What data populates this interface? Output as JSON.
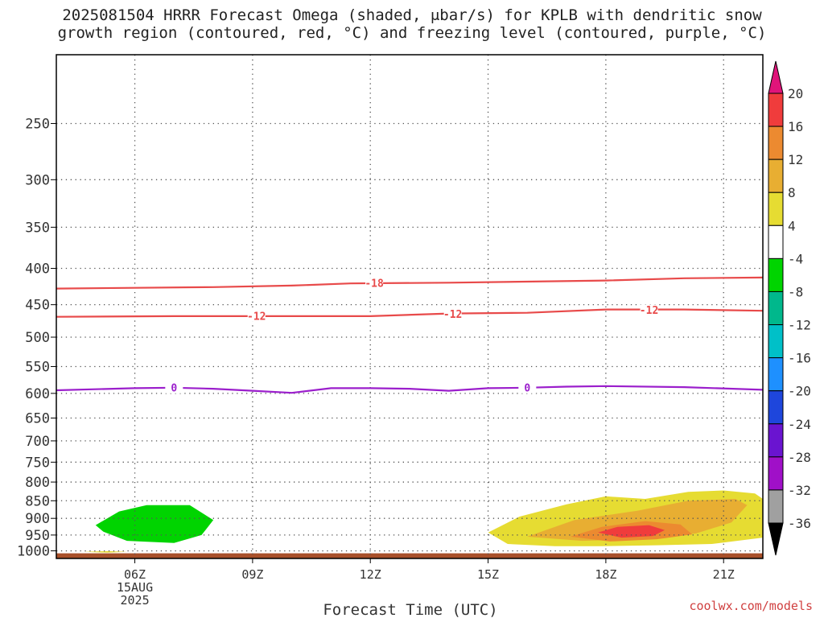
{
  "title": {
    "line1": "2025081504 HRRR Forecast Omega (shaded, μbar/s) for KPLB with dendritic snow",
    "line2": "growth region (contoured, red, °C) and freezing level (contoured, purple, °C)"
  },
  "credit": "coolwx.com/models",
  "chart_data": {
    "type": "time-height cross section",
    "xlabel": "Forecast Time (UTC)",
    "x_ticks": [
      {
        "hour": 6,
        "label": "06Z",
        "sub": [
          "15AUG",
          "2025"
        ]
      },
      {
        "hour": 9,
        "label": "09Z"
      },
      {
        "hour": 12,
        "label": "12Z"
      },
      {
        "hour": 15,
        "label": "15Z"
      },
      {
        "hour": 18,
        "label": "18Z"
      },
      {
        "hour": 21,
        "label": "21Z"
      }
    ],
    "xlim": [
      4,
      22
    ],
    "y_ticks": [
      250,
      300,
      350,
      400,
      450,
      500,
      550,
      600,
      650,
      700,
      750,
      800,
      850,
      900,
      950,
      1000
    ],
    "y_tick_labels": [
      "250",
      "300",
      "350",
      "400",
      "450",
      "500",
      "550",
      "600",
      "650",
      "700",
      "750",
      "800",
      "850",
      "900",
      "950",
      "1000"
    ],
    "ylim": [
      1025,
      200
    ],
    "yscale": "log-pressure",
    "grid": true,
    "contours": [
      {
        "name": "-18",
        "color": "#e84a4a",
        "points": [
          [
            4,
            427
          ],
          [
            6,
            426
          ],
          [
            8,
            425
          ],
          [
            10,
            423
          ],
          [
            11.5,
            420
          ],
          [
            14,
            419
          ],
          [
            18,
            416
          ],
          [
            20,
            413
          ],
          [
            22,
            412
          ]
        ],
        "labels": [
          [
            12.1,
            420
          ]
        ]
      },
      {
        "name": "-12",
        "color": "#e84a4a",
        "points": [
          [
            4,
            468
          ],
          [
            7,
            467
          ],
          [
            10,
            467
          ],
          [
            12,
            467
          ],
          [
            14,
            463
          ],
          [
            16,
            462
          ],
          [
            18,
            457
          ],
          [
            20,
            457
          ],
          [
            22,
            459
          ]
        ],
        "labels": [
          [
            9.1,
            467
          ],
          [
            14.1,
            464
          ],
          [
            19.1,
            458
          ]
        ]
      },
      {
        "name": "0",
        "color": "#9b1fcc",
        "points": [
          [
            4,
            594
          ],
          [
            6,
            590
          ],
          [
            7,
            589
          ],
          [
            8,
            591
          ],
          [
            9,
            595
          ],
          [
            10,
            599
          ],
          [
            11,
            590
          ],
          [
            12,
            590
          ],
          [
            13,
            591
          ],
          [
            14,
            595
          ],
          [
            15,
            590
          ],
          [
            16,
            589
          ],
          [
            17,
            587
          ],
          [
            18,
            586
          ],
          [
            20,
            588
          ],
          [
            22,
            593
          ]
        ],
        "labels": [
          [
            7.0,
            589
          ],
          [
            16.0,
            589
          ]
        ]
      }
    ],
    "shaded_regions": [
      {
        "value": "-8 to -4",
        "color": "#00d400",
        "points": [
          [
            5,
            920
          ],
          [
            5.6,
            880
          ],
          [
            6.3,
            862
          ],
          [
            7.4,
            862
          ],
          [
            8,
            905
          ],
          [
            7.7,
            950
          ],
          [
            7,
            975
          ],
          [
            5.8,
            968
          ],
          [
            5.2,
            940
          ]
        ]
      },
      {
        "value": "4 to 8",
        "color": "#e6dc32",
        "points": [
          [
            4.7,
            1003
          ],
          [
            5.3,
            1001
          ],
          [
            5.8,
            1003
          ],
          [
            5.3,
            1006
          ]
        ]
      },
      {
        "value": "4 to 8",
        "color": "#e6dc32",
        "points": [
          [
            15,
            942
          ],
          [
            15.8,
            895
          ],
          [
            17,
            860
          ],
          [
            18,
            838
          ],
          [
            19,
            845
          ],
          [
            20.1,
            826
          ],
          [
            21,
            822
          ],
          [
            21.8,
            830
          ],
          [
            22,
            845
          ],
          [
            22,
            958
          ],
          [
            20.7,
            978
          ],
          [
            19.3,
            982
          ],
          [
            17.9,
            985
          ],
          [
            16.7,
            985
          ],
          [
            15.5,
            978
          ]
        ]
      },
      {
        "value": "8 to 12",
        "color": "#e8ae32",
        "points": [
          [
            16,
            955
          ],
          [
            17.2,
            905
          ],
          [
            18.8,
            878
          ],
          [
            20.1,
            850
          ],
          [
            21.3,
            845
          ],
          [
            21.6,
            862
          ],
          [
            21.2,
            912
          ],
          [
            20.3,
            945
          ],
          [
            19,
            962
          ],
          [
            17.4,
            968
          ]
        ]
      },
      {
        "value": "12 to 16",
        "color": "#ec8a30",
        "points": [
          [
            17.1,
            955
          ],
          [
            17.9,
            925
          ],
          [
            19,
            908
          ],
          [
            19.9,
            918
          ],
          [
            20.2,
            948
          ],
          [
            19.3,
            963
          ],
          [
            18.1,
            970
          ]
        ]
      },
      {
        "value": "16 to 20",
        "color": "#f03c3c",
        "points": [
          [
            17.8,
            942
          ],
          [
            18.3,
            925
          ],
          [
            19.1,
            920
          ],
          [
            19.5,
            935
          ],
          [
            19.2,
            953
          ],
          [
            18.4,
            958
          ]
        ]
      }
    ],
    "terrain": {
      "color": "#a8502a",
      "pressure_top": 1008
    },
    "colorbar": {
      "levels": [
        {
          "label": "20",
          "color": "#f03c3c"
        },
        {
          "label": "16",
          "color": "#ec8a30"
        },
        {
          "label": "12",
          "color": "#e8ae32"
        },
        {
          "label": "8",
          "color": "#e6dc32"
        },
        {
          "label": "4",
          "color": "#ffffff"
        },
        {
          "label": "-4",
          "color": "#00d400"
        },
        {
          "label": "-8",
          "color": "#00b88c"
        },
        {
          "label": "-12",
          "color": "#00c0c8"
        },
        {
          "label": "-16",
          "color": "#1e90ff"
        },
        {
          "label": "-20",
          "color": "#1e46dc"
        },
        {
          "label": "-24",
          "color": "#6a14d0"
        },
        {
          "label": "-28",
          "color": "#a010c8"
        },
        {
          "label": "-32",
          "color": "#a0a0a0"
        },
        {
          "label": "-36",
          "color": "#000000"
        }
      ],
      "top_arrow_color": "#e0147a",
      "bottom_arrow_color": "#000000"
    }
  }
}
